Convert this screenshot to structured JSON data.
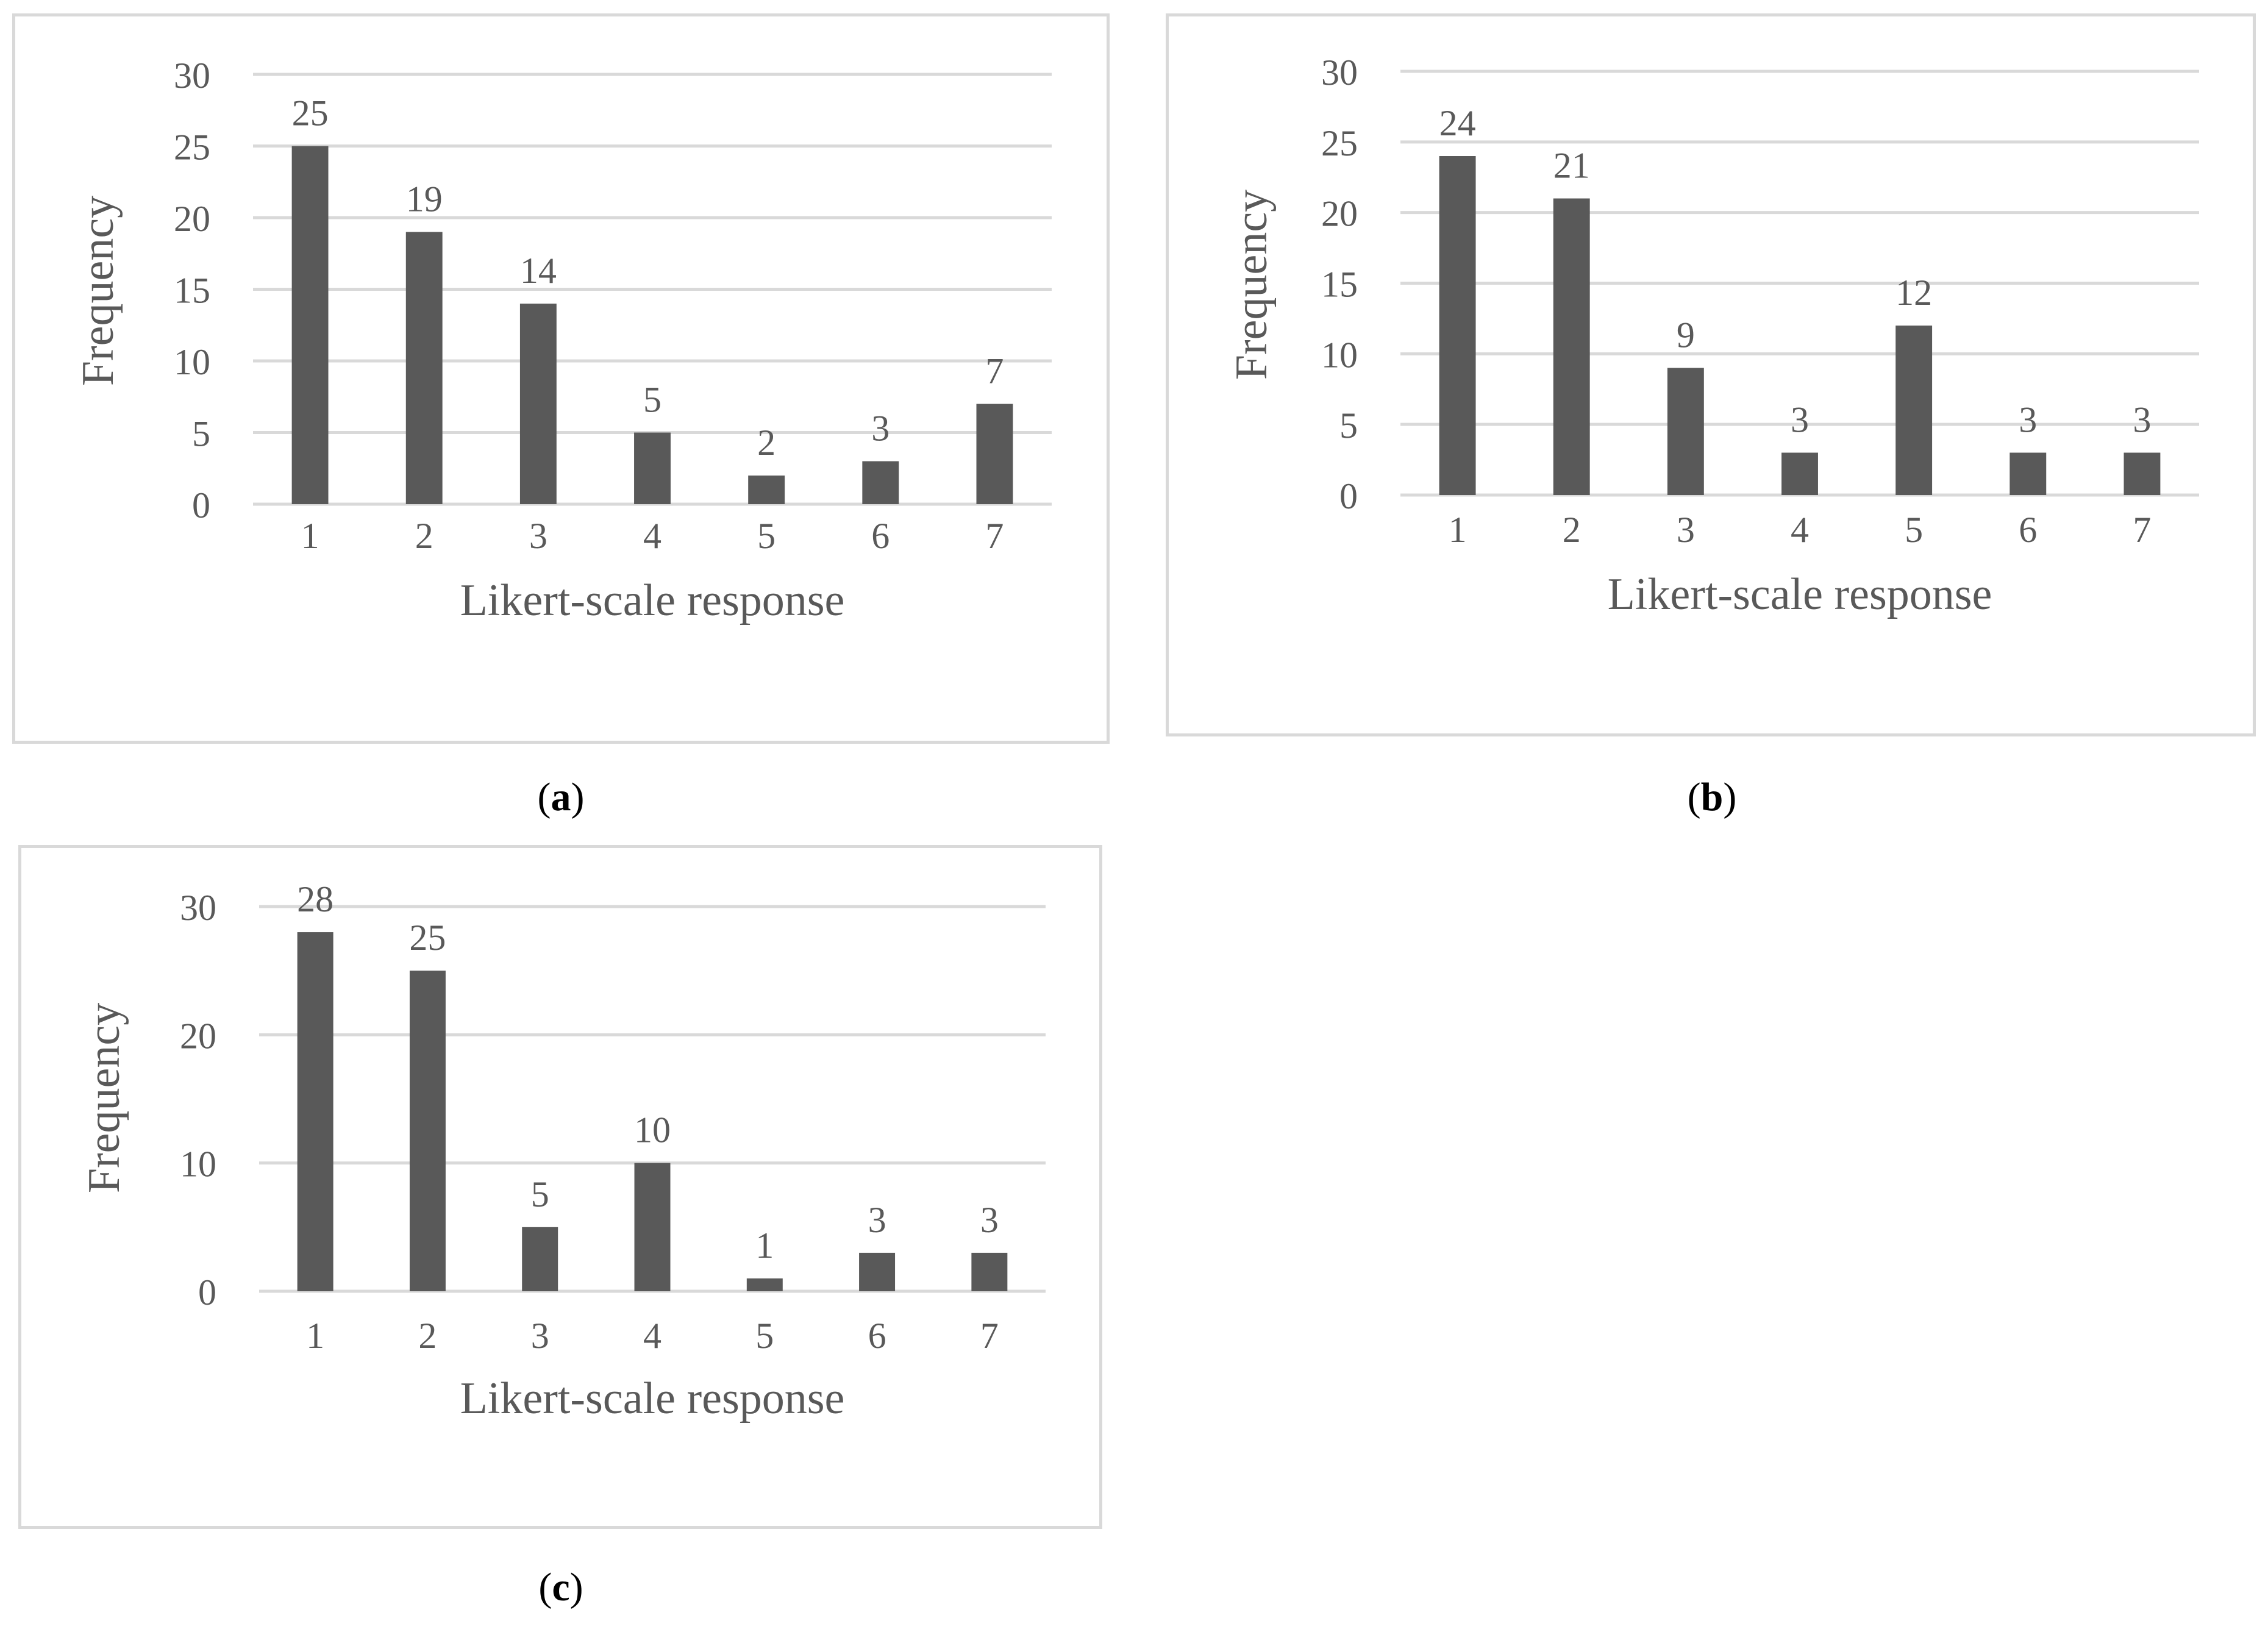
{
  "chart_data": [
    {
      "type": "bar",
      "panel_label": "a",
      "categories": [
        "1",
        "2",
        "3",
        "4",
        "5",
        "6",
        "7"
      ],
      "values": [
        25,
        19,
        14,
        5,
        2,
        3,
        7
      ],
      "xlabel": "Likert-scale response",
      "ylabel": "Frequency",
      "ylim": [
        0,
        30
      ],
      "yticks": [
        0,
        5,
        10,
        15,
        20,
        25,
        30
      ],
      "grid": true,
      "data_labels": true,
      "bar_color": "#595959"
    },
    {
      "type": "bar",
      "panel_label": "b",
      "categories": [
        "1",
        "2",
        "3",
        "4",
        "5",
        "6",
        "7"
      ],
      "values": [
        24,
        21,
        9,
        3,
        12,
        3,
        3
      ],
      "xlabel": "Likert-scale response",
      "ylabel": "Frequency",
      "ylim": [
        0,
        30
      ],
      "yticks": [
        0,
        5,
        10,
        15,
        20,
        25,
        30
      ],
      "grid": true,
      "data_labels": true,
      "bar_color": "#595959"
    },
    {
      "type": "bar",
      "panel_label": "c",
      "categories": [
        "1",
        "2",
        "3",
        "4",
        "5",
        "6",
        "7"
      ],
      "values": [
        28,
        25,
        5,
        10,
        1,
        3,
        3
      ],
      "xlabel": "Likert-scale response",
      "ylabel": "Frequency",
      "ylim": [
        0,
        30
      ],
      "yticks": [
        0,
        10,
        20,
        30
      ],
      "grid": true,
      "data_labels": true,
      "bar_color": "#595959"
    }
  ],
  "colors": {
    "bar": "#595959",
    "gridline": "#d9d9d9",
    "tick_text": "#595959",
    "border": "#d9d9d9"
  }
}
